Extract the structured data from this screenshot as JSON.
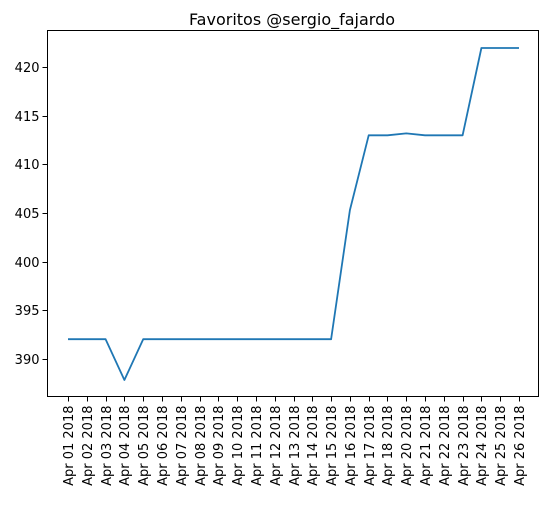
{
  "chart_data": {
    "type": "line",
    "title": "Favoritos @sergio_fajardo",
    "xlabel": "",
    "ylabel": "",
    "x": [
      "Apr 01 2018",
      "Apr 02 2018",
      "Apr 03 2018",
      "Apr 04 2018",
      "Apr 05 2018",
      "Apr 06 2018",
      "Apr 07 2018",
      "Apr 08 2018",
      "Apr 09 2018",
      "Apr 10 2018",
      "Apr 11 2018",
      "Apr 12 2018",
      "Apr 13 2018",
      "Apr 14 2018",
      "Apr 15 2018",
      "Apr 16 2018",
      "Apr 17 2018",
      "Apr 18 2018",
      "Apr 20 2018",
      "Apr 21 2018",
      "Apr 22 2018",
      "Apr 23 2018",
      "Apr 24 2018",
      "Apr 25 2018",
      "Apr 26 2018"
    ],
    "series": [
      {
        "values": [
          392,
          392,
          392,
          387.8,
          392,
          392,
          392,
          392,
          392,
          392,
          392,
          392,
          392,
          392,
          392,
          405.3,
          413,
          413,
          413.2,
          413,
          413,
          413,
          422,
          422,
          422
        ]
      }
    ],
    "yticks": [
      390,
      395,
      400,
      405,
      410,
      415,
      420
    ],
    "ylim": [
      386.1,
      423.8
    ],
    "grid": false,
    "color": "#1f77b4"
  }
}
